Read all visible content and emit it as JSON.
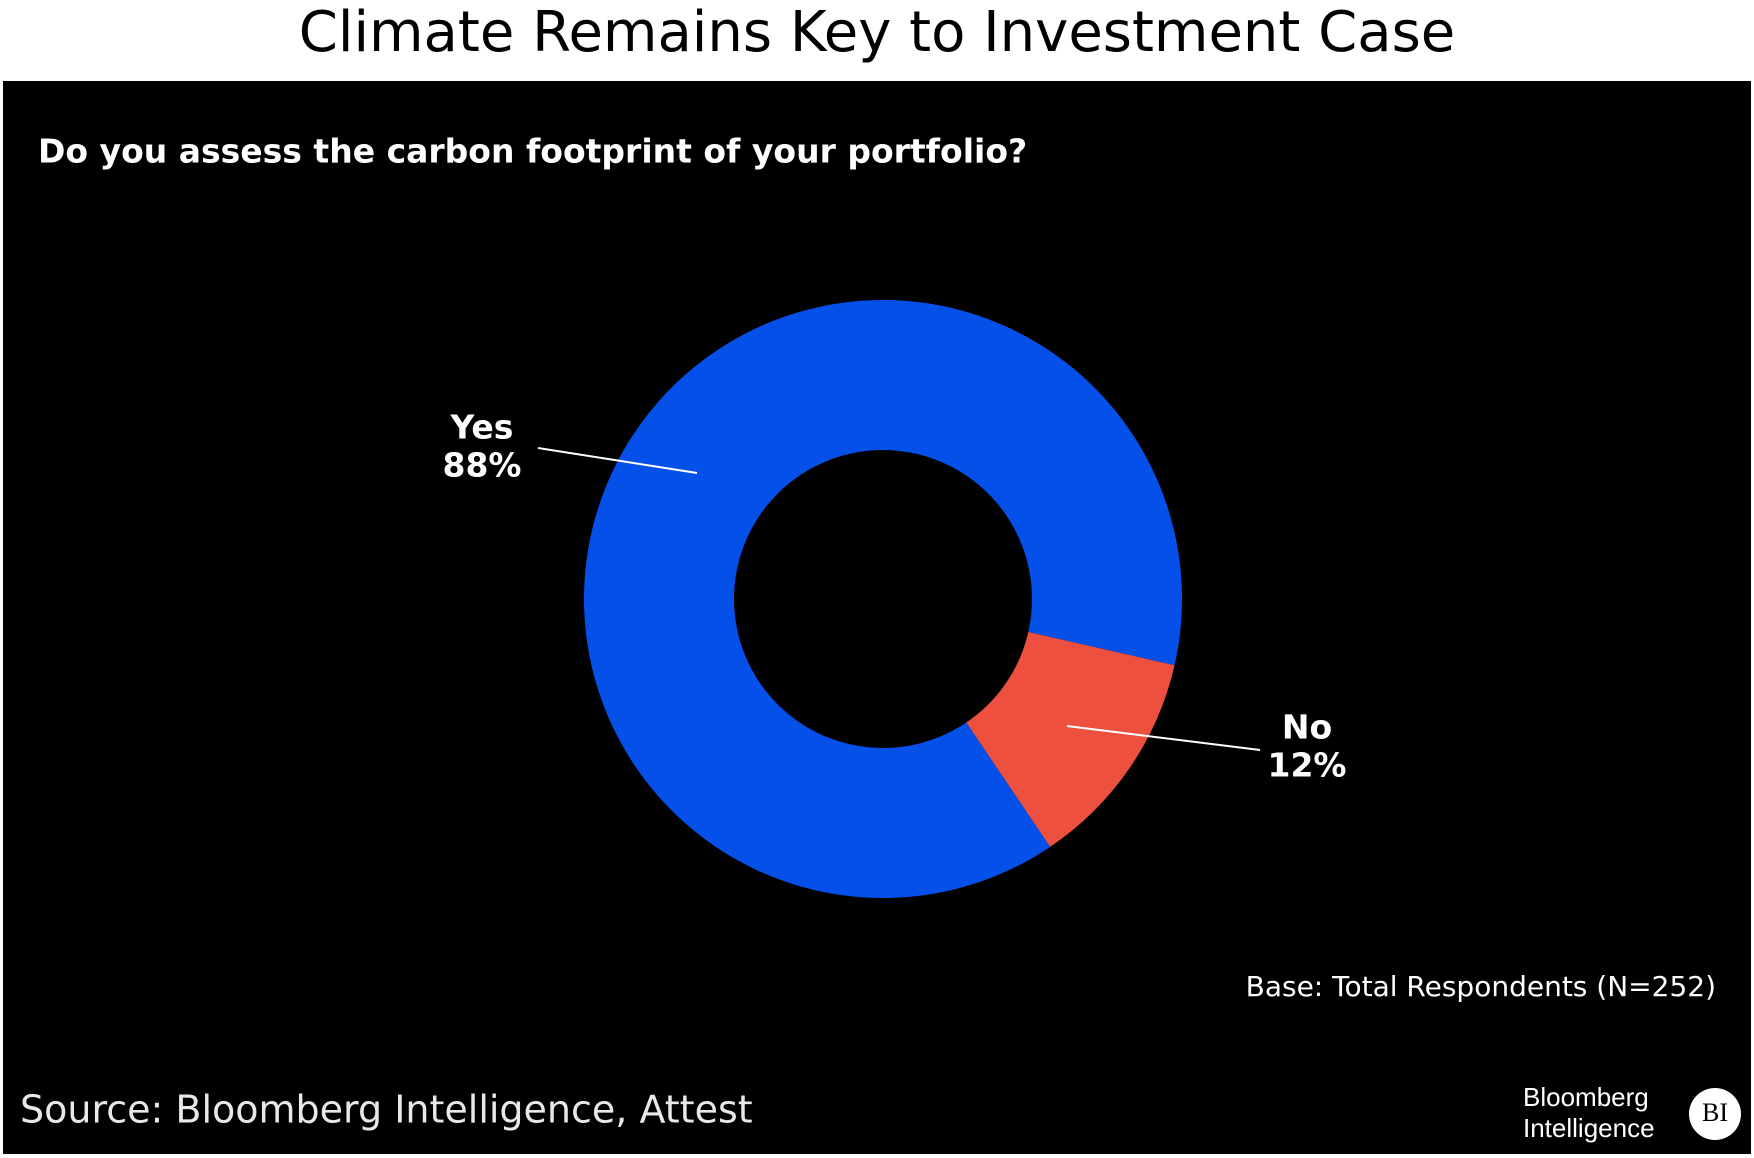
{
  "chart_data": {
    "type": "donut",
    "title": "Climate Remains Key to Investment Case",
    "subtitle": "Do you assess the carbon footprint of your portfolio?",
    "categories": [
      "Yes",
      "No"
    ],
    "values": [
      88,
      12
    ],
    "value_labels": [
      "88%",
      "12%"
    ],
    "colors": [
      "#0650ea",
      "#ee5040"
    ],
    "note": "Base: Total Respondents (N=252)",
    "source": "Source: Bloomberg Intelligence, Attest",
    "logo": {
      "text": [
        "Bloomberg",
        "Intelligence"
      ],
      "badge": "BI"
    }
  }
}
